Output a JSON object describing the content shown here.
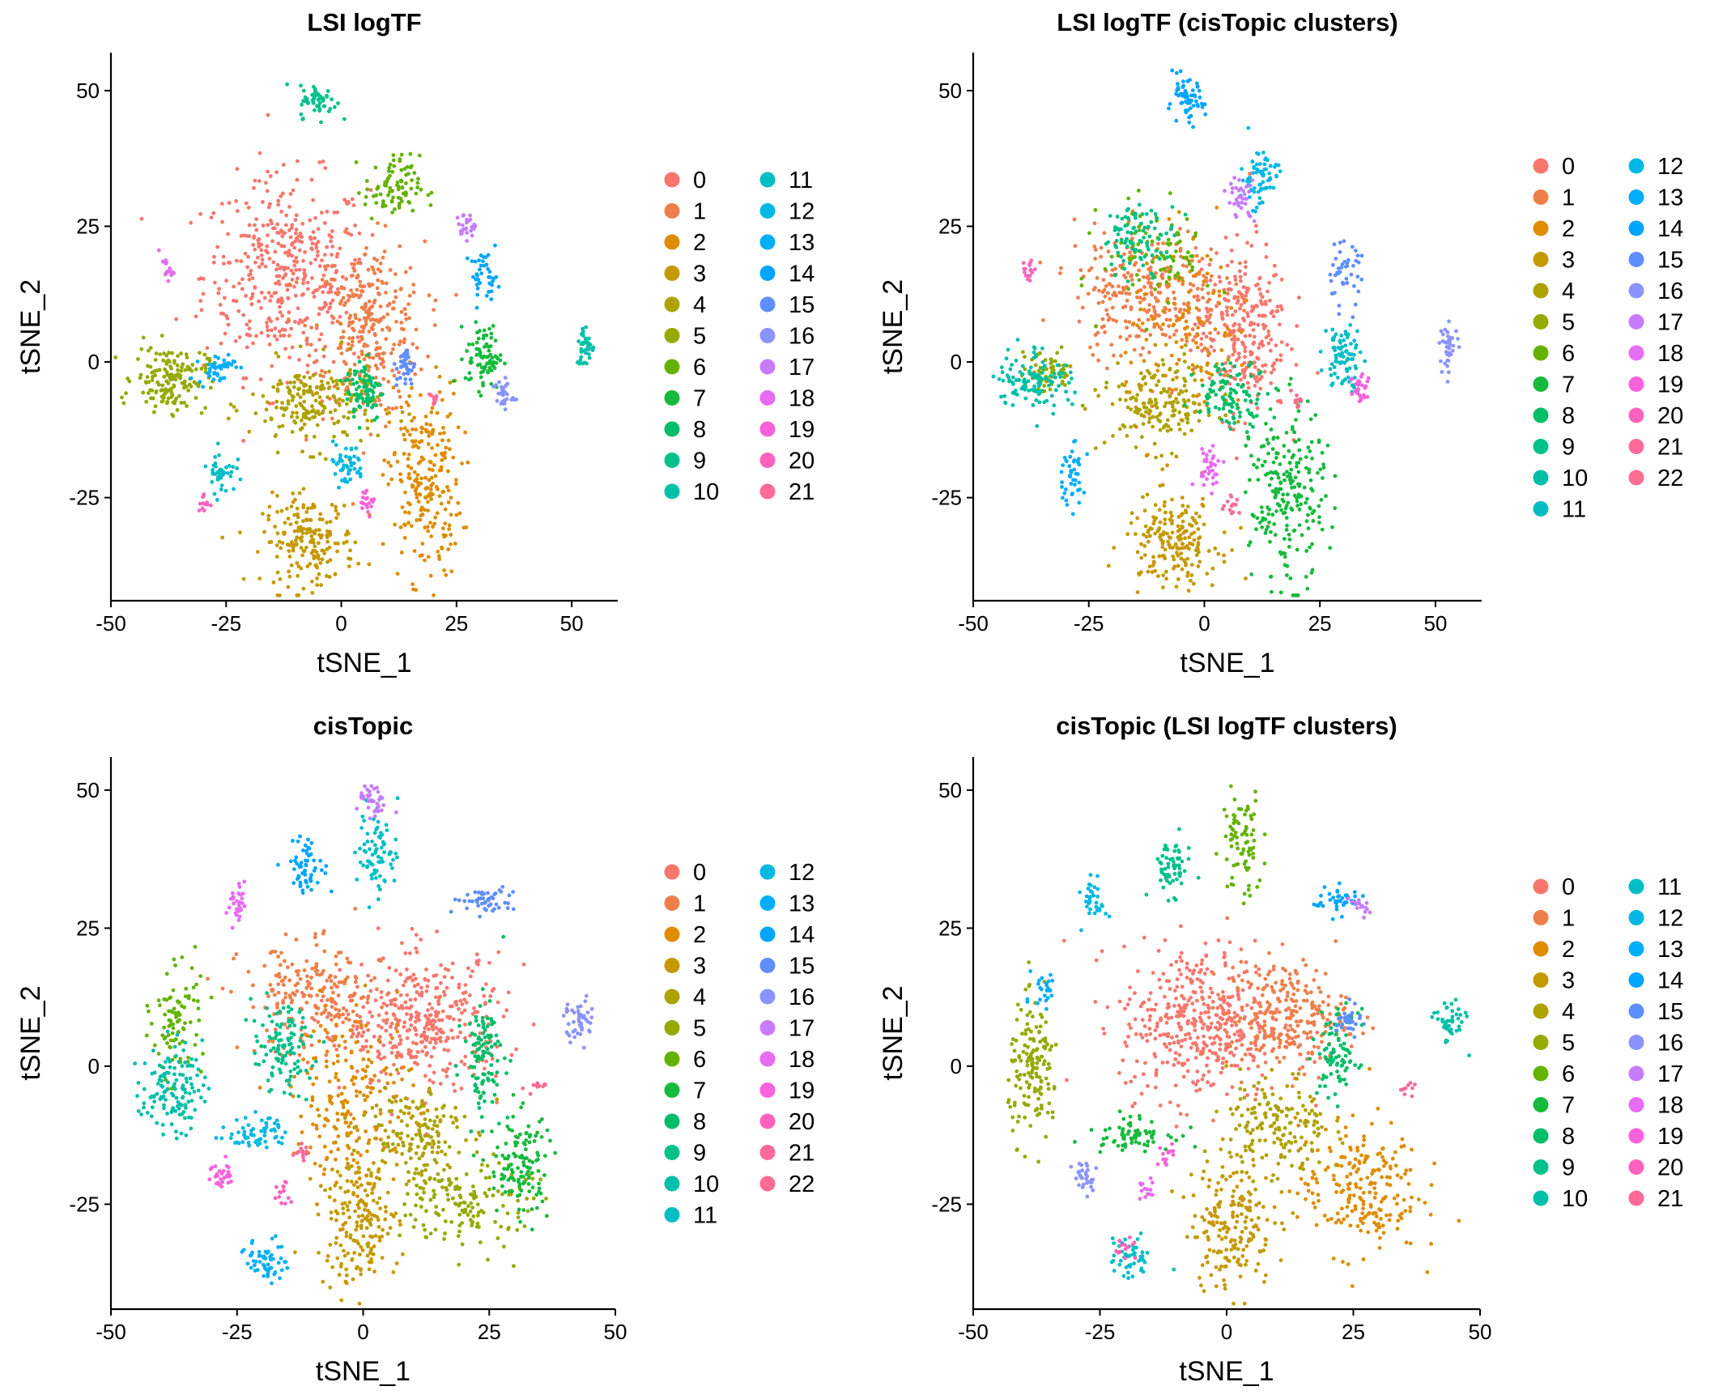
{
  "palette": [
    "#F8766D",
    "#EE7F4A",
    "#DE8C00",
    "#C59900",
    "#AEA200",
    "#94AA00",
    "#64B200",
    "#16BA3C",
    "#00BE67",
    "#00C08B",
    "#00BFA8",
    "#00BDC4",
    "#00B8E3",
    "#00AEFA",
    "#00A5FF",
    "#5F8EFF",
    "#8B93FF",
    "#C77CFF",
    "#E76BF3",
    "#FA62DB",
    "#FF62BC",
    "#FF6A98",
    "#FF6C91"
  ],
  "chart_data": [
    {
      "type": "scatter",
      "title": "LSI logTF",
      "xlabel": "tSNE_1",
      "ylabel": "tSNE_2",
      "xlim": [
        -50,
        60
      ],
      "ylim": [
        -44,
        57
      ],
      "xticks": [
        -50,
        -25,
        0,
        25,
        50
      ],
      "yticks": [
        -25,
        0,
        25,
        50
      ],
      "grid": false,
      "legend": {
        "placement": "right",
        "columns": 2,
        "labels": [
          "0",
          "1",
          "2",
          "3",
          "4",
          "5",
          "6",
          "7",
          "8",
          "9",
          "10",
          "11",
          "12",
          "13",
          "14",
          "15",
          "16",
          "17",
          "18",
          "19",
          "20",
          "21"
        ]
      },
      "clusters": [
        {
          "label": "0",
          "cx": -12,
          "cy": 16,
          "sx": 9,
          "sy": 9,
          "n": 420
        },
        {
          "label": "1",
          "cx": 6,
          "cy": 6,
          "sx": 6,
          "sy": 8,
          "n": 300
        },
        {
          "label": "2",
          "cx": 18,
          "cy": -22,
          "sx": 4,
          "sy": 9,
          "n": 230
        },
        {
          "label": "3",
          "cx": -7,
          "cy": -33,
          "sx": 5,
          "sy": 4,
          "n": 190
        },
        {
          "label": "4",
          "cx": -6,
          "cy": -8,
          "sx": 7,
          "sy": 4,
          "n": 200
        },
        {
          "label": "5",
          "cx": -37,
          "cy": -3,
          "sx": 4,
          "sy": 3,
          "n": 160
        },
        {
          "label": "6",
          "cx": 11,
          "cy": 32,
          "sx": 3,
          "sy": 3,
          "n": 90
        },
        {
          "label": "7",
          "cx": 31,
          "cy": 1,
          "sx": 2,
          "sy": 3,
          "n": 80
        },
        {
          "label": "8",
          "cx": 5,
          "cy": -5,
          "sx": 2,
          "sy": 3,
          "n": 80
        },
        {
          "label": "9",
          "cx": -5,
          "cy": 48,
          "sx": 2,
          "sy": 1.5,
          "n": 55
        },
        {
          "label": "10",
          "cx": 53,
          "cy": 3,
          "sx": 1,
          "sy": 2,
          "n": 40
        },
        {
          "label": "11",
          "cx": -26,
          "cy": -20,
          "sx": 1.5,
          "sy": 2,
          "n": 40
        },
        {
          "label": "12",
          "cx": 1,
          "cy": -19,
          "sx": 2,
          "sy": 2,
          "n": 45
        },
        {
          "label": "13",
          "cx": -27,
          "cy": -1,
          "sx": 2,
          "sy": 1.5,
          "n": 45
        },
        {
          "label": "14",
          "cx": 31,
          "cy": 16,
          "sx": 1.5,
          "sy": 2,
          "n": 40
        },
        {
          "label": "15",
          "cx": 14,
          "cy": -1,
          "sx": 1,
          "sy": 2,
          "n": 35
        },
        {
          "label": "16",
          "cx": 35,
          "cy": -6,
          "sx": 1.2,
          "sy": 1.5,
          "n": 30
        },
        {
          "label": "17",
          "cx": 27,
          "cy": 25,
          "sx": 1,
          "sy": 1.2,
          "n": 25
        },
        {
          "label": "18",
          "cx": -38,
          "cy": 17,
          "sx": 0.8,
          "sy": 1,
          "n": 18
        },
        {
          "label": "19",
          "cx": 6,
          "cy": -26,
          "sx": 0.8,
          "sy": 1,
          "n": 18
        },
        {
          "label": "20",
          "cx": -30,
          "cy": -26,
          "sx": 0.6,
          "sy": 1,
          "n": 12
        },
        {
          "label": "21",
          "cx": 20,
          "cy": -7,
          "sx": 0.6,
          "sy": 0.8,
          "n": 10
        }
      ]
    },
    {
      "type": "scatter",
      "title": "LSI logTF (cisTopic clusters)",
      "xlabel": "tSNE_1",
      "ylabel": "tSNE_2",
      "xlim": [
        -50,
        60
      ],
      "ylim": [
        -44,
        57
      ],
      "xticks": [
        -50,
        -25,
        0,
        25,
        50
      ],
      "yticks": [
        -25,
        0,
        25,
        50
      ],
      "grid": false,
      "legend": {
        "placement": "right",
        "columns": 2,
        "labels": [
          "0",
          "1",
          "2",
          "3",
          "4",
          "5",
          "6",
          "7",
          "8",
          "9",
          "10",
          "11",
          "12",
          "13",
          "14",
          "15",
          "16",
          "17",
          "18",
          "19",
          "20",
          "21",
          "22"
        ]
      },
      "clusters": [
        {
          "label": "0",
          "cx": 8,
          "cy": 6,
          "sx": 5,
          "sy": 8,
          "n": 280
        },
        {
          "label": "1",
          "cx": -12,
          "cy": 13,
          "sx": 8,
          "sy": 6,
          "n": 300
        },
        {
          "label": "2",
          "cx": -3,
          "cy": 4,
          "sx": 7,
          "sy": 9,
          "n": 120
        },
        {
          "label": "3",
          "cx": -7,
          "cy": -33,
          "sx": 5,
          "sy": 4,
          "n": 190
        },
        {
          "label": "4",
          "cx": -9,
          "cy": -8,
          "sx": 6,
          "sy": 4,
          "n": 170
        },
        {
          "label": "5",
          "cx": -34,
          "cy": -2,
          "sx": 3,
          "sy": 2,
          "n": 70
        },
        {
          "label": "6",
          "cx": -10,
          "cy": 20,
          "sx": 6,
          "sy": 5,
          "n": 90
        },
        {
          "label": "7",
          "cx": 18,
          "cy": -25,
          "sx": 4,
          "sy": 8,
          "n": 230
        },
        {
          "label": "8",
          "cx": 6,
          "cy": -6,
          "sx": 4,
          "sy": 3,
          "n": 100
        },
        {
          "label": "9",
          "cx": -14,
          "cy": 23,
          "sx": 4,
          "sy": 3,
          "n": 90
        },
        {
          "label": "10",
          "cx": -37,
          "cy": -3,
          "sx": 4,
          "sy": 3,
          "n": 110
        },
        {
          "label": "11",
          "cx": 30,
          "cy": 1,
          "sx": 2,
          "sy": 3,
          "n": 80
        },
        {
          "label": "12",
          "cx": 12,
          "cy": 34,
          "sx": 2,
          "sy": 3,
          "n": 70
        },
        {
          "label": "13",
          "cx": -29,
          "cy": -21,
          "sx": 1.5,
          "sy": 3,
          "n": 45
        },
        {
          "label": "14",
          "cx": -4,
          "cy": 48,
          "sx": 2,
          "sy": 2,
          "n": 60
        },
        {
          "label": "15",
          "cx": 30,
          "cy": 16,
          "sx": 2,
          "sy": 3,
          "n": 45
        },
        {
          "label": "16",
          "cx": 53,
          "cy": 3,
          "sx": 1,
          "sy": 2,
          "n": 40
        },
        {
          "label": "17",
          "cx": 8,
          "cy": 30,
          "sx": 1.5,
          "sy": 2,
          "n": 35
        },
        {
          "label": "18",
          "cx": 1,
          "cy": -19,
          "sx": 1.5,
          "sy": 2,
          "n": 35
        },
        {
          "label": "19",
          "cx": 34,
          "cy": -5,
          "sx": 1.2,
          "sy": 2,
          "n": 30
        },
        {
          "label": "20",
          "cx": -38,
          "cy": 17,
          "sx": 0.8,
          "sy": 1,
          "n": 18
        },
        {
          "label": "21",
          "cx": 6,
          "cy": -26,
          "sx": 0.8,
          "sy": 1,
          "n": 14
        },
        {
          "label": "22",
          "cx": 20,
          "cy": -7,
          "sx": 0.6,
          "sy": 0.8,
          "n": 10
        }
      ]
    },
    {
      "type": "scatter",
      "title": "cisTopic",
      "xlabel": "tSNE_1",
      "ylabel": "tSNE_2",
      "xlim": [
        -50,
        50
      ],
      "ylim": [
        -44,
        56
      ],
      "xticks": [
        -50,
        -25,
        0,
        25,
        50
      ],
      "yticks": [
        -25,
        0,
        25,
        50
      ],
      "grid": false,
      "legend": {
        "placement": "right",
        "columns": 2,
        "labels": [
          "0",
          "1",
          "2",
          "3",
          "4",
          "5",
          "6",
          "7",
          "8",
          "9",
          "10",
          "11",
          "12",
          "13",
          "14",
          "15",
          "16",
          "17",
          "18",
          "19",
          "20",
          "21",
          "22"
        ]
      },
      "clusters": [
        {
          "label": "0",
          "cx": 12,
          "cy": 8,
          "sx": 8,
          "sy": 6,
          "n": 380
        },
        {
          "label": "1",
          "cx": -10,
          "cy": 12,
          "sx": 7,
          "sy": 5,
          "n": 220
        },
        {
          "label": "2",
          "cx": -2,
          "cy": -6,
          "sx": 6,
          "sy": 8,
          "n": 200
        },
        {
          "label": "3",
          "cx": -1,
          "cy": -28,
          "sx": 4,
          "sy": 6,
          "n": 190
        },
        {
          "label": "4",
          "cx": 10,
          "cy": -12,
          "sx": 5,
          "sy": 5,
          "n": 160
        },
        {
          "label": "5",
          "cx": 21,
          "cy": -25,
          "sx": 6,
          "sy": 4,
          "n": 150
        },
        {
          "label": "6",
          "cx": -37,
          "cy": 8,
          "sx": 2.5,
          "sy": 5,
          "n": 90
        },
        {
          "label": "7",
          "cx": 31,
          "cy": -18,
          "sx": 3,
          "sy": 5,
          "n": 120
        },
        {
          "label": "8",
          "cx": 24,
          "cy": 2,
          "sx": 2,
          "sy": 5,
          "n": 110
        },
        {
          "label": "9",
          "cx": -16,
          "cy": 3,
          "sx": 3,
          "sy": 4,
          "n": 110
        },
        {
          "label": "10",
          "cx": -38,
          "cy": -4,
          "sx": 3,
          "sy": 4,
          "n": 130
        },
        {
          "label": "11",
          "cx": 3,
          "cy": 39,
          "sx": 2,
          "sy": 4,
          "n": 75
        },
        {
          "label": "12",
          "cx": -21,
          "cy": -12,
          "sx": 3,
          "sy": 1.5,
          "n": 60
        },
        {
          "label": "13",
          "cx": -19,
          "cy": -35,
          "sx": 2,
          "sy": 2,
          "n": 55
        },
        {
          "label": "14",
          "cx": -11,
          "cy": 36,
          "sx": 2,
          "sy": 2.5,
          "n": 60
        },
        {
          "label": "15",
          "cx": 24,
          "cy": 30,
          "sx": 3,
          "sy": 1.2,
          "n": 50
        },
        {
          "label": "16",
          "cx": 43,
          "cy": 8,
          "sx": 1.5,
          "sy": 2,
          "n": 45
        },
        {
          "label": "17",
          "cx": 2,
          "cy": 48,
          "sx": 1.5,
          "sy": 1.5,
          "n": 35
        },
        {
          "label": "18",
          "cx": -25,
          "cy": 29,
          "sx": 1,
          "sy": 2,
          "n": 30
        },
        {
          "label": "19",
          "cx": -28,
          "cy": -20,
          "sx": 1.2,
          "sy": 1.5,
          "n": 30
        },
        {
          "label": "20",
          "cx": -16,
          "cy": -23,
          "sx": 0.8,
          "sy": 1.5,
          "n": 14
        },
        {
          "label": "21",
          "cx": -12,
          "cy": -16,
          "sx": 0.8,
          "sy": 1,
          "n": 14
        },
        {
          "label": "22",
          "cx": 34,
          "cy": -4,
          "sx": 1,
          "sy": 0.6,
          "n": 10
        }
      ]
    },
    {
      "type": "scatter",
      "title": "cisTopic (LSI logTF clusters)",
      "xlabel": "tSNE_1",
      "ylabel": "tSNE_2",
      "xlim": [
        -50,
        50
      ],
      "ylim": [
        -44,
        56
      ],
      "xticks": [
        -50,
        -25,
        0,
        25,
        50
      ],
      "yticks": [
        -25,
        0,
        25,
        50
      ],
      "grid": false,
      "legend": {
        "placement": "right",
        "columns": 2,
        "labels": [
          "0",
          "1",
          "2",
          "3",
          "4",
          "5",
          "6",
          "7",
          "8",
          "9",
          "10",
          "11",
          "12",
          "13",
          "14",
          "15",
          "16",
          "17",
          "18",
          "19",
          "20",
          "21"
        ]
      },
      "clusters": [
        {
          "label": "0",
          "cx": -5,
          "cy": 8,
          "sx": 8,
          "sy": 7,
          "n": 440
        },
        {
          "label": "1",
          "cx": 12,
          "cy": 9,
          "sx": 6,
          "sy": 5,
          "n": 240
        },
        {
          "label": "2",
          "cx": 26,
          "cy": -22,
          "sx": 6,
          "sy": 6,
          "n": 220
        },
        {
          "label": "3",
          "cx": 1,
          "cy": -28,
          "sx": 4,
          "sy": 6,
          "n": 190
        },
        {
          "label": "4",
          "cx": 10,
          "cy": -11,
          "sx": 5,
          "sy": 5,
          "n": 160
        },
        {
          "label": "5",
          "cx": -38,
          "cy": -1,
          "sx": 2.5,
          "sy": 6,
          "n": 150
        },
        {
          "label": "6",
          "cx": 3,
          "cy": 40,
          "sx": 2,
          "sy": 5,
          "n": 80
        },
        {
          "label": "7",
          "cx": -19,
          "cy": -12,
          "sx": 4,
          "sy": 1.5,
          "n": 70
        },
        {
          "label": "8",
          "cx": 22,
          "cy": 2,
          "sx": 2,
          "sy": 4,
          "n": 90
        },
        {
          "label": "9",
          "cx": -11,
          "cy": 36,
          "sx": 2,
          "sy": 2.5,
          "n": 60
        },
        {
          "label": "10",
          "cx": 44,
          "cy": 8,
          "sx": 1.5,
          "sy": 2,
          "n": 45
        },
        {
          "label": "11",
          "cx": -19,
          "cy": -35,
          "sx": 2,
          "sy": 2,
          "n": 50
        },
        {
          "label": "12",
          "cx": -26,
          "cy": 30,
          "sx": 1.2,
          "sy": 2,
          "n": 35
        },
        {
          "label": "13",
          "cx": -36,
          "cy": 14,
          "sx": 1.2,
          "sy": 2,
          "n": 25
        },
        {
          "label": "14",
          "cx": 22,
          "cy": 30,
          "sx": 2.5,
          "sy": 1.2,
          "n": 45
        },
        {
          "label": "15",
          "cx": 24,
          "cy": 8,
          "sx": 1.2,
          "sy": 1.5,
          "n": 30
        },
        {
          "label": "16",
          "cx": -28,
          "cy": -20,
          "sx": 1.2,
          "sy": 1.5,
          "n": 30
        },
        {
          "label": "17",
          "cx": 26,
          "cy": 29,
          "sx": 1,
          "sy": 1,
          "n": 18
        },
        {
          "label": "18",
          "cx": -16,
          "cy": -23,
          "sx": 0.8,
          "sy": 1.5,
          "n": 14
        },
        {
          "label": "19",
          "cx": -12,
          "cy": -16,
          "sx": 0.8,
          "sy": 1,
          "n": 14
        },
        {
          "label": "20",
          "cx": -20,
          "cy": -33,
          "sx": 1.5,
          "sy": 1,
          "n": 14
        },
        {
          "label": "21",
          "cx": 36,
          "cy": -4,
          "sx": 1,
          "sy": 0.6,
          "n": 10
        }
      ]
    }
  ]
}
